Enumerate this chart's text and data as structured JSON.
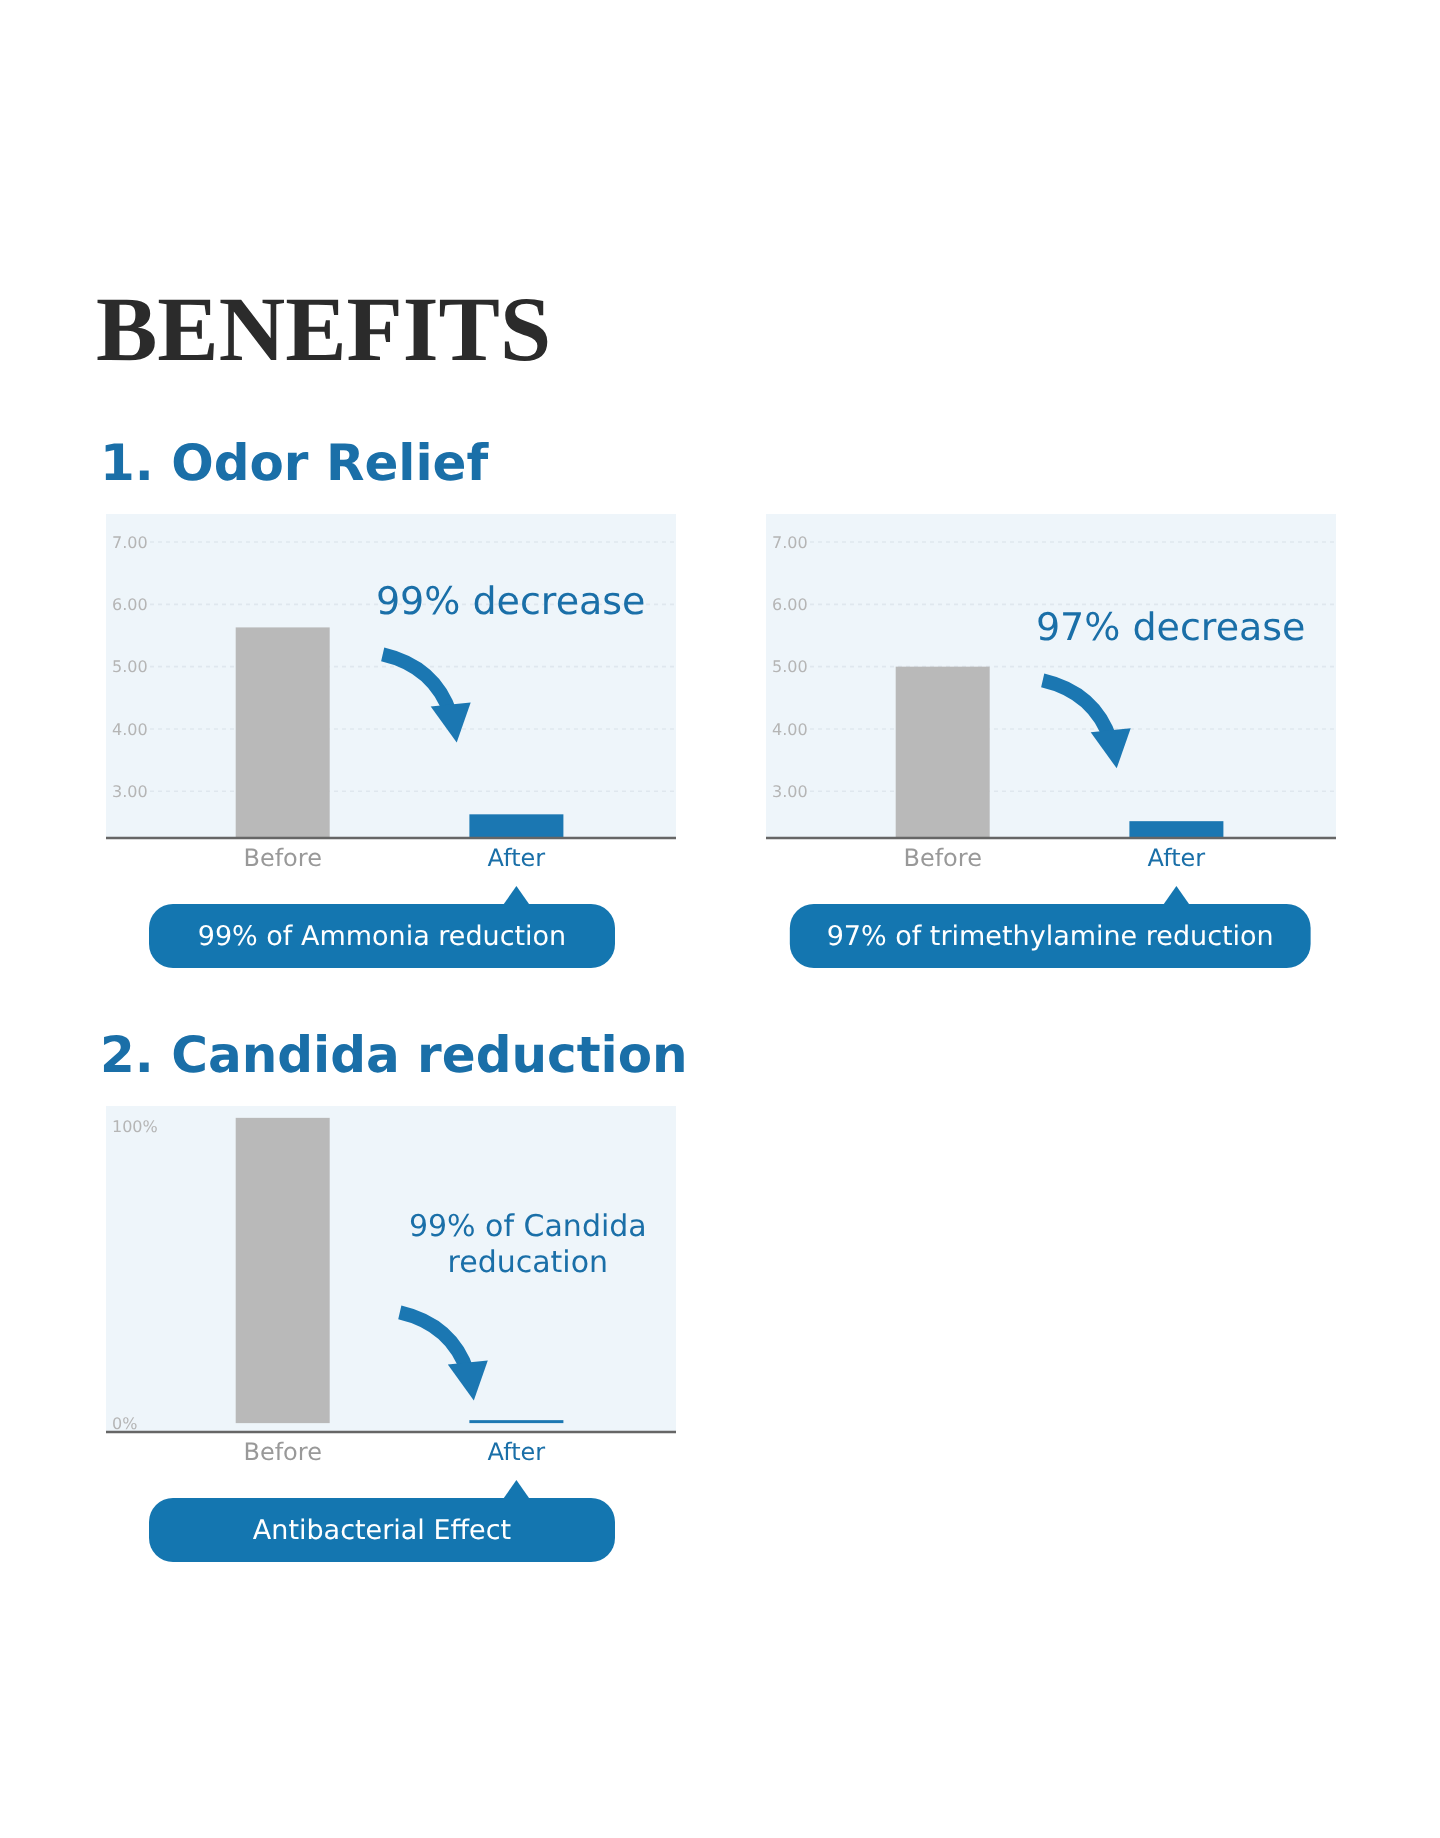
{
  "chart_data": [
    {
      "type": "bar",
      "title": "BENEFITS",
      "subtitle": "1. Odor Relief",
      "categories": [
        "Before",
        "After"
      ],
      "values": [
        5.63,
        2.63
      ],
      "colors": [
        "#b9b9b9",
        "#1b77b2"
      ],
      "ylim": [
        2.25,
        7.45
      ],
      "yticks": [
        {
          "value": 3,
          "label": "3.00"
        },
        {
          "value": 4,
          "label": "4.00"
        },
        {
          "value": 5,
          "label": "5.00"
        },
        {
          "value": 6,
          "label": "6.00"
        },
        {
          "value": 7,
          "label": "7.00"
        }
      ],
      "grid": "y",
      "annotations": [
        "99% decrease",
        "99% of Ammonia reduction"
      ]
    },
    {
      "type": "bar",
      "categories": [
        "Before",
        "After"
      ],
      "values": [
        5.0,
        2.52
      ],
      "colors": [
        "#b9b9b9",
        "#1b77b2"
      ],
      "ylim": [
        2.25,
        7.45
      ],
      "yticks": [
        {
          "value": 3,
          "label": "3.00"
        },
        {
          "value": 4,
          "label": "4.00"
        },
        {
          "value": 5,
          "label": "5.00"
        },
        {
          "value": 6,
          "label": "6.00"
        },
        {
          "value": 7,
          "label": "7.00"
        }
      ],
      "grid": "y",
      "annotations": [
        "97% decrease",
        "97% of trimethylamine reduction"
      ]
    },
    {
      "type": "bar",
      "title": "2. Candida reduction",
      "categories": [
        "Before",
        "After"
      ],
      "values": [
        103,
        1
      ],
      "colors": [
        "#b9b9b9",
        "#1b77b2"
      ],
      "ylim": [
        -3,
        107
      ],
      "yticks": [
        {
          "value": 0,
          "label": "0%"
        },
        {
          "value": 100,
          "label": "100%"
        }
      ],
      "annotations": [
        "99% of Candida reducation",
        "Antibacterial Effect"
      ]
    }
  ]
}
